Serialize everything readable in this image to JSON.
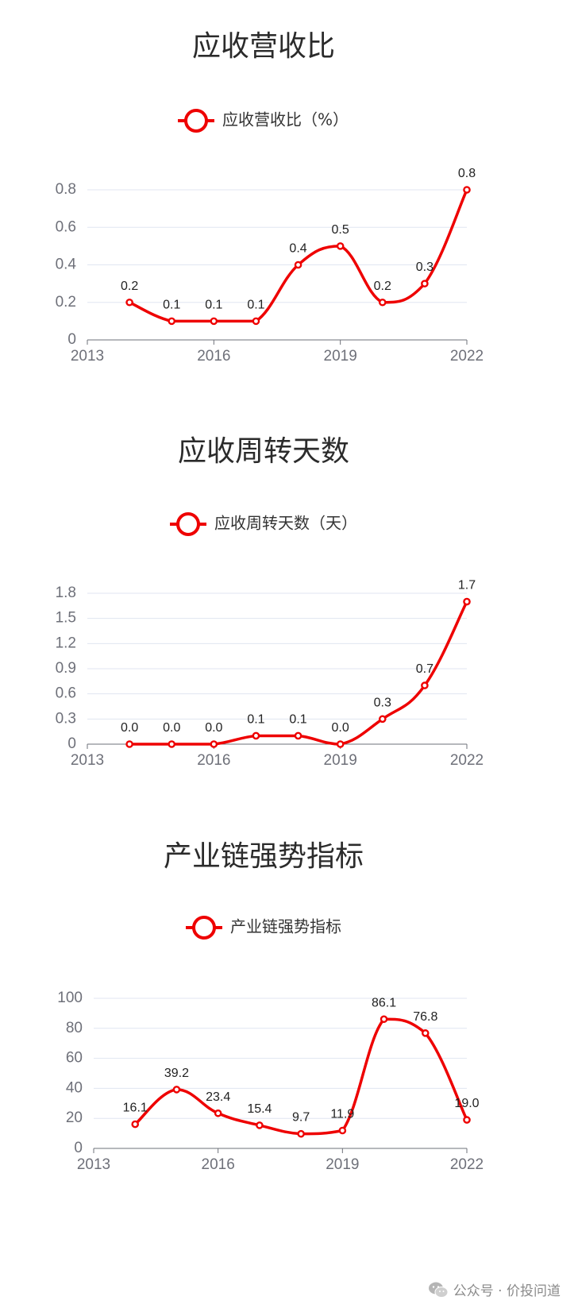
{
  "chart_data": [
    {
      "type": "line",
      "title": "应收营收比",
      "legend": "应收营收比（%）",
      "x_ticks": [
        "2013",
        "2016",
        "2019",
        "2022"
      ],
      "xlim": [
        2013,
        2022
      ],
      "y_ticks": [
        "0",
        "0.2",
        "0.4",
        "0.6",
        "0.8"
      ],
      "ylim": [
        0,
        0.8
      ],
      "x": [
        2014,
        2015,
        2016,
        2017,
        2018,
        2019,
        2020,
        2021,
        2022
      ],
      "series": [
        {
          "values": [
            0.2,
            0.1,
            0.1,
            0.1,
            0.4,
            0.5,
            0.2,
            0.3,
            0.8
          ],
          "labels": [
            "0.2",
            "0.1",
            "0.1",
            "0.1",
            "0.4",
            "0.5",
            "0.2",
            "0.3",
            "0.8"
          ]
        }
      ],
      "grid": true,
      "smooth": true,
      "legend_position": "top-center",
      "color": "#ee0000"
    },
    {
      "type": "line",
      "title": "应收周转天数",
      "legend": "应收周转天数（天）",
      "x_ticks": [
        "2013",
        "2016",
        "2019",
        "2022"
      ],
      "xlim": [
        2013,
        2022
      ],
      "y_ticks": [
        "0",
        "0.3",
        "0.6",
        "0.9",
        "1.2",
        "1.5",
        "1.8"
      ],
      "ylim": [
        0,
        1.8
      ],
      "x": [
        2014,
        2015,
        2016,
        2017,
        2018,
        2019,
        2020,
        2021,
        2022
      ],
      "series": [
        {
          "values": [
            0.0,
            0.0,
            0.0,
            0.1,
            0.1,
            0.0,
            0.3,
            0.7,
            1.7
          ],
          "labels": [
            "0.0",
            "0.0",
            "0.0",
            "0.1",
            "0.1",
            "0.0",
            "0.3",
            "0.7",
            "1.7"
          ]
        }
      ],
      "grid": true,
      "smooth": true,
      "legend_position": "top-center",
      "color": "#ee0000"
    },
    {
      "type": "line",
      "title": "产业链强势指标",
      "legend": "产业链强势指标",
      "x_ticks": [
        "2013",
        "2016",
        "2019",
        "2022"
      ],
      "xlim": [
        2013,
        2022
      ],
      "y_ticks": [
        "0",
        "20",
        "40",
        "60",
        "80",
        "100"
      ],
      "ylim": [
        0,
        100
      ],
      "x": [
        2014,
        2015,
        2016,
        2017,
        2018,
        2019,
        2020,
        2021,
        2022
      ],
      "series": [
        {
          "values": [
            16.1,
            39.2,
            23.4,
            15.4,
            9.7,
            11.9,
            86.1,
            76.8,
            19.0
          ],
          "labels": [
            "16.1",
            "39.2",
            "23.4",
            "15.4",
            "9.7",
            "11.9",
            "86.1",
            "76.8",
            "19.0"
          ]
        }
      ],
      "grid": true,
      "smooth": true,
      "legend_position": "top-center",
      "color": "#ee0000"
    }
  ],
  "watermark": {
    "icon": "wechat-icon",
    "text": "公众号 · 价投问道"
  }
}
